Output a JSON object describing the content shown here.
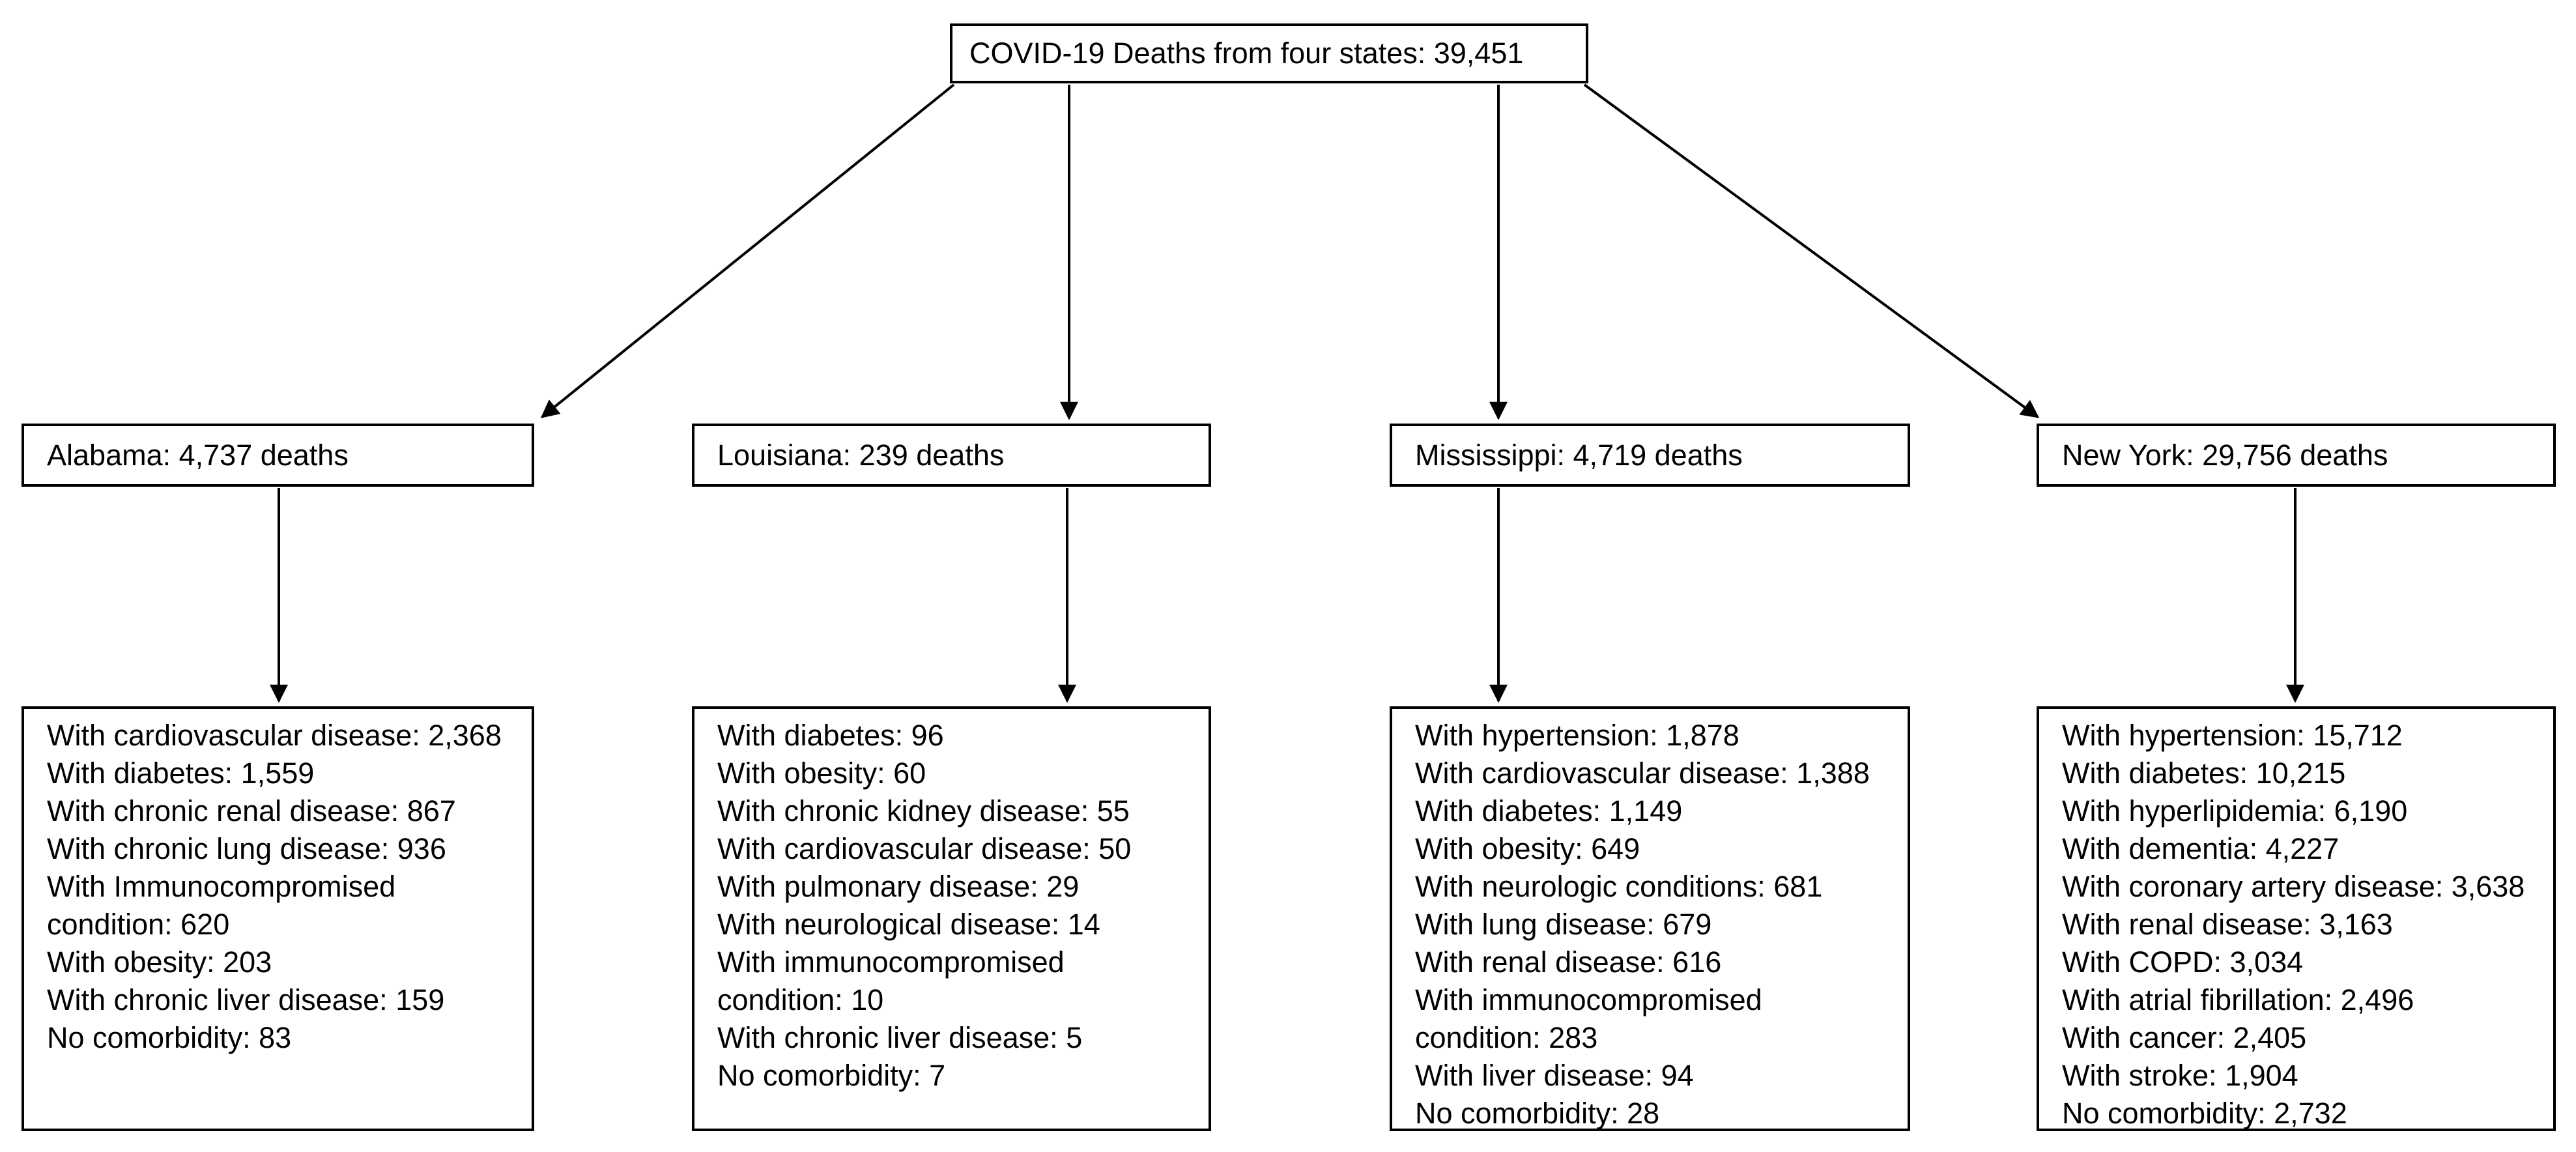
{
  "title_box": {
    "label": "COVID-19 Deaths from four states: 39,451"
  },
  "states": [
    {
      "name": "Alabama",
      "header": "Alabama: 4,737 deaths",
      "items": [
        "With cardiovascular disease: 2,368",
        "With diabetes: 1,559",
        "With chronic renal disease: 867",
        "With chronic lung disease: 936",
        "With Immunocompromised condition: 620",
        "With obesity: 203",
        "With chronic liver disease: 159",
        "No comorbidity: 83"
      ]
    },
    {
      "name": "Louisiana",
      "header": "Louisiana: 239 deaths",
      "items": [
        "With diabetes: 96",
        "With obesity: 60",
        "With chronic kidney disease: 55",
        "With cardiovascular disease: 50",
        "With pulmonary disease: 29",
        "With neurological disease: 14",
        "With immunocompromised condition: 10",
        "With chronic liver disease: 5",
        "No comorbidity: 7"
      ]
    },
    {
      "name": "Mississippi",
      "header": "Mississippi: 4,719 deaths",
      "items": [
        "With hypertension: 1,878",
        "With cardiovascular disease: 1,388",
        "With diabetes: 1,149",
        "With obesity: 649",
        "With neurologic conditions: 681",
        "With lung disease: 679",
        "With renal disease: 616",
        "With immunocompromised condition: 283",
        "With liver disease: 94",
        "No comorbidity: 28"
      ]
    },
    {
      "name": "New York",
      "header": "New York: 29,756 deaths",
      "items": [
        "With hypertension: 15,712",
        "With diabetes: 10,215",
        "With hyperlipidemia: 6,190",
        "With dementia: 4,227",
        "With coronary artery disease: 3,638",
        "With renal disease: 3,163",
        "With COPD: 3,034",
        "With atrial fibrillation: 2,496",
        "With cancer: 2,405",
        "With stroke: 1,904",
        "No comorbidity: 2,732"
      ]
    }
  ],
  "colors": {
    "border": "#000000",
    "text": "#000000",
    "background": "#ffffff"
  }
}
